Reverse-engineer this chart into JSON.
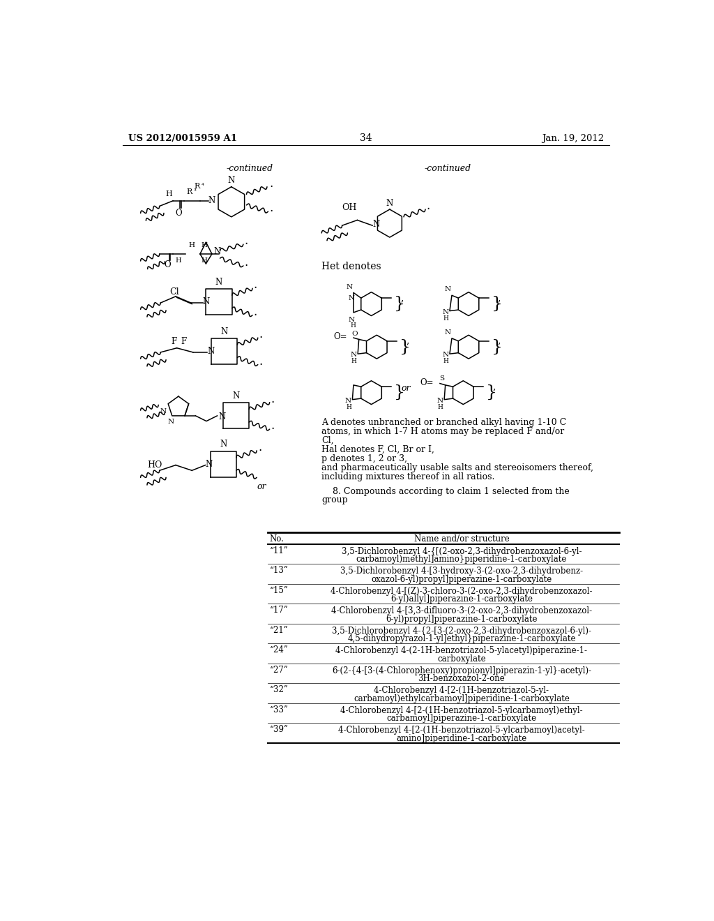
{
  "page_number": "34",
  "patent_number": "US 2012/0015959 A1",
  "patent_date": "Jan. 19, 2012",
  "background_color": "#ffffff",
  "text_color": "#000000",
  "left_continued_label": "-continued",
  "right_continued_label": "-continued",
  "het_label": "Het denotes",
  "legend_lines": [
    "A denotes unbranched or branched alkyl having 1-10 C",
    "atoms, in which 1-7 H atoms may be replaced F and/or",
    "Cl,",
    "Hal denotes F, Cl, Br or I,",
    "p denotes 1, 2 or 3,",
    "and pharmaceutically usable salts and stereoisomers thereof,",
    "including mixtures thereof in all ratios."
  ],
  "claim8_line1": "    8. Compounds according to claim 1 selected from the",
  "claim8_line2": "group",
  "table_rows": [
    [
      "“11”",
      "3,5-Dichlorobenzyl 4-{[(2-oxo-2,3-dihydrobenzoxazol-6-yl-",
      "carbamoyl)methyl]amino}piperidine-1-carboxylate"
    ],
    [
      "“13”",
      "3,5-Dichlorobenzyl 4-[3-hydroxy-3-(2-oxo-2,3-dihydrobenz-",
      "oxazol-6-yl)propyl]piperazine-1-carboxylate"
    ],
    [
      "“15”",
      "4-Chlorobenzyl 4-[(Z)-3-chloro-3-(2-oxo-2,3-dihydrobenzoxazol-",
      "6-yl)allyl]piperazine-1-carboxylate"
    ],
    [
      "“17”",
      "4-Chlorobenzyl 4-[3,3-difluoro-3-(2-oxo-2,3-dihydrobenzoxazol-",
      "6-yl)propyl]piperazine-1-carboxylate"
    ],
    [
      "“21”",
      "3,5-Dichlorobenzyl 4-{2-[3-(2-oxo-2,3-dihydrobenzoxazol-6-yl)-",
      "4,5-dihydropyrazol-1-yl]ethyl}piperazine-1-carboxylate"
    ],
    [
      "“24”",
      "4-Chlorobenzyl 4-(2-1H-benzotriazol-5-ylacetyl)piperazine-1-",
      "carboxylate"
    ],
    [
      "“27”",
      "6-(2-{4-[3-(4-Chlorophenoxy)propionyl]piperazin-1-yl}-acetyl)-",
      "3H-benzoxazol-2-one"
    ],
    [
      "“32”",
      "4-Chlorobenzyl 4-[2-(1H-benzotriazol-5-yl-",
      "carbamoyl)ethylcarbamoyl]piperidine-1-carboxylate"
    ],
    [
      "“33”",
      "4-Chlorobenzyl 4-[2-(1H-benzotriazol-5-ylcarbamoyl)ethyl-",
      "carbamoyl]piperazine-1-carboxylate"
    ],
    [
      "“39”",
      "4-Chlorobenzyl 4-[2-(1H-benzotriazol-5-ylcarbamoyl)acetyl-",
      "amino]piperidine-1-carboxylate"
    ]
  ]
}
